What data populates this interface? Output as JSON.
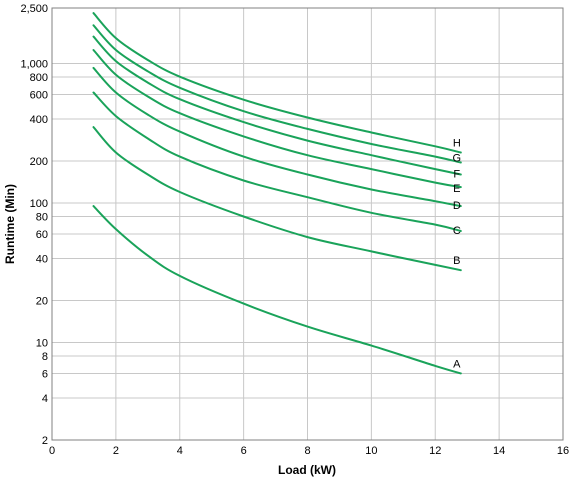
{
  "chart_data": {
    "type": "line",
    "title": "",
    "xlabel": "Load (kW)",
    "ylabel": "Runtime (Min)",
    "xlim": [
      0,
      16
    ],
    "ylim": [
      2,
      2500
    ],
    "yscale": "log",
    "grid": true,
    "legend": "none; series labels at right end of each line",
    "line_color": "#1aa35a",
    "x_ticks": [
      0,
      2,
      4,
      6,
      8,
      10,
      12,
      14,
      16
    ],
    "x_tick_labels": [
      "0",
      "2",
      "4",
      "6",
      "8",
      "10",
      "12",
      "14",
      "16"
    ],
    "y_ticks": [
      2,
      4,
      6,
      8,
      10,
      20,
      40,
      60,
      80,
      100,
      200,
      400,
      600,
      800,
      1000,
      2500
    ],
    "y_tick_labels": [
      "2",
      "4",
      "6",
      "8",
      "10",
      "20",
      "40",
      "60",
      "80",
      "100",
      "200",
      "400",
      "600",
      "800",
      "1,000",
      "2,500"
    ],
    "x": [
      1.3,
      2,
      3,
      4,
      6,
      8,
      10,
      12,
      12.8
    ],
    "series": [
      {
        "name": "A",
        "values": [
          95,
          65,
          42,
          30,
          19,
          13,
          9.5,
          6.8,
          6.0
        ]
      },
      {
        "name": "B",
        "values": [
          350,
          230,
          160,
          120,
          80,
          57,
          45,
          36,
          33
        ]
      },
      {
        "name": "C",
        "values": [
          620,
          420,
          290,
          215,
          145,
          110,
          85,
          70,
          63
        ]
      },
      {
        "name": "D",
        "values": [
          930,
          620,
          430,
          325,
          215,
          160,
          125,
          103,
          95
        ]
      },
      {
        "name": "E",
        "values": [
          1250,
          830,
          580,
          440,
          300,
          220,
          175,
          140,
          130
        ]
      },
      {
        "name": "F",
        "values": [
          1560,
          1040,
          730,
          555,
          380,
          280,
          220,
          175,
          160
        ]
      },
      {
        "name": "G",
        "values": [
          1880,
          1250,
          880,
          670,
          455,
          340,
          265,
          215,
          195
        ]
      },
      {
        "name": "H",
        "values": [
          2300,
          1520,
          1060,
          805,
          550,
          410,
          320,
          255,
          230
        ]
      }
    ]
  }
}
